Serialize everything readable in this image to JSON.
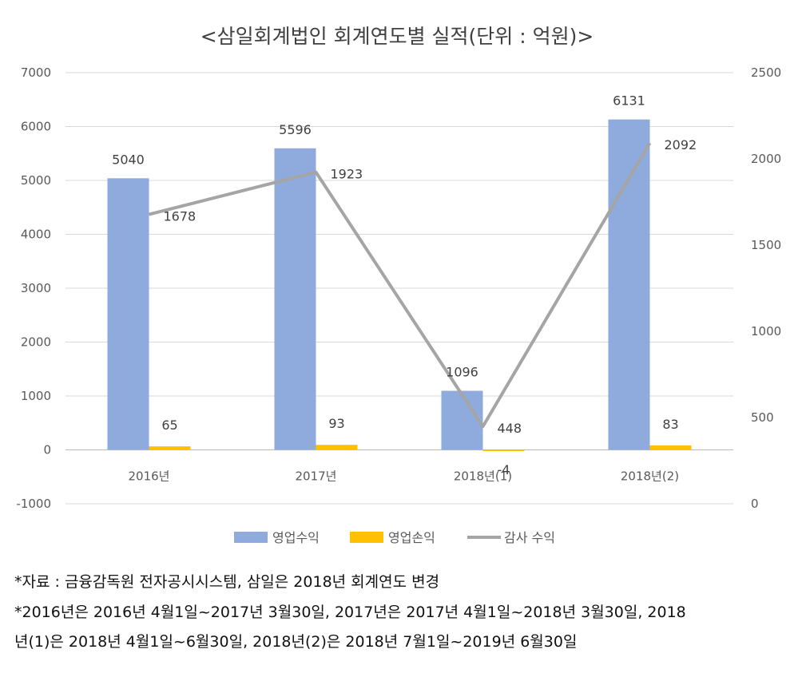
{
  "chart_data": {
    "type": "bar",
    "title": "<삼일회계법인 회계연도별 실적(단위 : 억원)>",
    "categories": [
      "2016년",
      "2017년",
      "2018년(1)",
      "2018년(2)"
    ],
    "series": [
      {
        "name": "영업수익",
        "type": "bar",
        "axis": "left",
        "values": [
          5040,
          5596,
          1096,
          6131
        ],
        "color": "#8faadc"
      },
      {
        "name": "영업손익",
        "type": "bar",
        "axis": "left",
        "values": [
          65,
          93,
          -4,
          83
        ],
        "color": "#ffc000"
      },
      {
        "name": "감사 수익",
        "type": "line",
        "axis": "right",
        "values": [
          1678,
          1923,
          448,
          2092
        ],
        "color": "#a5a5a5"
      }
    ],
    "y_left": {
      "min": -1000,
      "max": 7000,
      "step": 1000,
      "ticks": [
        "7000",
        "6000",
        "5000",
        "4000",
        "3000",
        "2000",
        "1000",
        "0",
        "-1000"
      ]
    },
    "y_right": {
      "min": 0,
      "max": 2500,
      "step": 500,
      "ticks": [
        "2500",
        "2000",
        "1500",
        "1000",
        "500",
        "0"
      ]
    },
    "grid": true,
    "legend_position": "bottom"
  },
  "notes": [
    "*자료 : 금융감독원 전자공시시스템, 삼일은 2018년 회계연도 변경",
    "*2016년은 2016년 4월1일~2017년 3월30일, 2017년은 2017년 4월1일~2018년 3월30일, 2018",
    "년(1)은 2018년 4월1일~6월30일, 2018년(2)은 2018년 7월1일~2019년 6월30일"
  ]
}
